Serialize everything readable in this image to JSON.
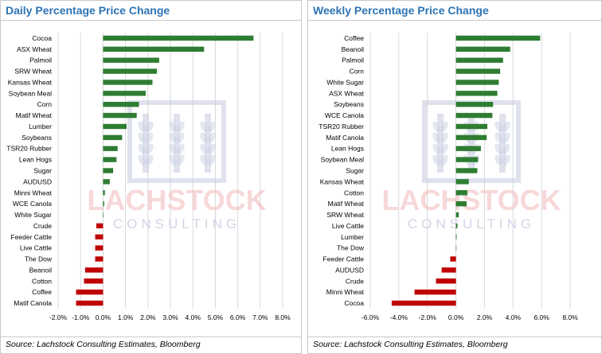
{
  "colors": {
    "title": "#2e74b5",
    "positive_bar": "#2e7d32",
    "negative_bar": "#c00000",
    "grid": "#d9d9d9",
    "watermark": "#c5cbe0",
    "watermark_text": "#f2b9b9"
  },
  "watermark": {
    "name": "LACHSTOCK",
    "tagline": "CONSULTING",
    "icon": "wheat-logo-icon"
  },
  "chart_data": [
    {
      "type": "bar",
      "orientation": "horizontal",
      "title": "Daily Percentage Price Change",
      "source": "Source: Lachstock Consulting Estimates, Bloomberg",
      "categories": [
        "Cocoa",
        "ASX Wheat",
        "Palmoil",
        "SRW Wheat",
        "Kansas Wheat",
        "Soybean Meal",
        "Corn",
        "Matif Wheat",
        "Lumber",
        "Soybeans",
        "TSR20 Rubber",
        "Lean Hogs",
        "Sugar",
        "AUDUSD",
        "Minni Wheat",
        "WCE Canola",
        "White Sugar",
        "Crude",
        "Feeder Cattle",
        "Live Cattle",
        "The Dow",
        "Beanoil",
        "Cotton",
        "Coffee",
        "Matif Canola"
      ],
      "values": [
        6.7,
        4.5,
        2.5,
        2.4,
        2.2,
        1.9,
        1.6,
        1.5,
        1.05,
        0.85,
        0.65,
        0.6,
        0.45,
        0.3,
        0.08,
        0.05,
        0.02,
        -0.3,
        -0.35,
        -0.35,
        -0.35,
        -0.8,
        -0.85,
        -1.2,
        -1.2
      ],
      "xlim": [
        -2,
        8
      ],
      "xticks": [
        -2,
        -1,
        0,
        1,
        2,
        3,
        4,
        5,
        6,
        7,
        8
      ],
      "xticklabels": [
        "-2.0%",
        "-1.0%",
        "0.0%",
        "1.0%",
        "2.0%",
        "3.0%",
        "4.0%",
        "5.0%",
        "6.0%",
        "7.0%",
        "8.0%"
      ],
      "grid": true
    },
    {
      "type": "bar",
      "orientation": "horizontal",
      "title": "Weekly Percentage Price Change",
      "source": "Source: Lachstock Consulting Estimates, Bloomberg",
      "categories": [
        "Coffee",
        "Beanoil",
        "Palmoil",
        "Corn",
        "White Sugar",
        "ASX Wheat",
        "Soybeans",
        "WCE Canola",
        "TSR20 Rubber",
        "Matif Canola",
        "Lean Hogs",
        "Soybean Meal",
        "Sugar",
        "Kansas Wheat",
        "Cotton",
        "Matif Wheat",
        "SRW Wheat",
        "Live Cattle",
        "Lumber",
        "The Dow",
        "Feeder Cattle",
        "AUDUSD",
        "Crude",
        "Minni Wheat",
        "Cocoa"
      ],
      "values": [
        5.9,
        3.8,
        3.3,
        3.1,
        3.0,
        2.9,
        2.6,
        2.55,
        2.2,
        2.15,
        1.75,
        1.55,
        1.5,
        0.9,
        0.8,
        0.75,
        0.2,
        0.1,
        0.05,
        0.0,
        -0.4,
        -1.0,
        -1.4,
        -2.9,
        -4.5
      ],
      "xlim": [
        -6,
        8
      ],
      "xticks": [
        -6,
        -4,
        -2,
        0,
        2,
        4,
        6,
        8
      ],
      "xticklabels": [
        "-6.0%",
        "-4.0%",
        "-2.0%",
        "0.0%",
        "2.0%",
        "4.0%",
        "6.0%",
        "8.0%"
      ],
      "grid": true
    }
  ]
}
